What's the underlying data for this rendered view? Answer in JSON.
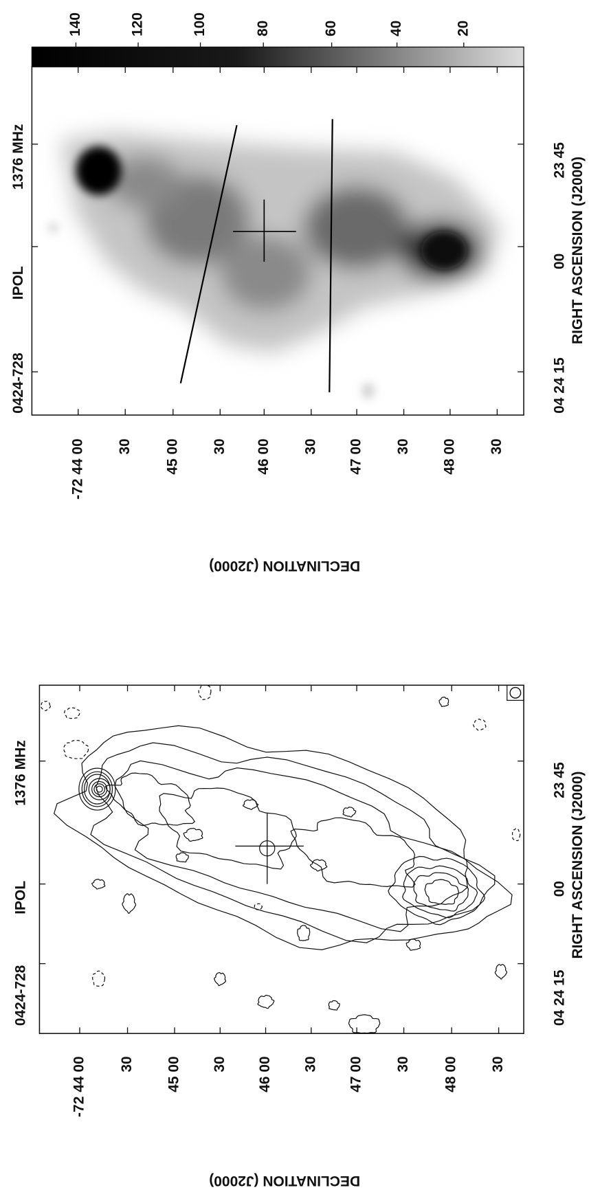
{
  "panels": [
    {
      "title": {
        "source": "0424-728",
        "stokes": "IPOL",
        "frequency": "1376 MHz"
      },
      "colorbar_ticks": [
        140,
        120,
        100,
        80,
        60,
        40,
        20
      ],
      "dec_ticks": [
        "-72 44 00",
        "30",
        "45 00",
        "30",
        "46 00",
        "30",
        "47 00",
        "30",
        "48 00",
        "30"
      ],
      "ra_ticks": [
        "04 24 15",
        "00",
        "23 45"
      ],
      "dec_label": "DECLINATION (J2000)",
      "ra_label": "RIGHT ASCENSION (J2000)"
    },
    {
      "title": {
        "source": "0424-728",
        "stokes": "IPOL",
        "frequency": "1376 MHz"
      },
      "dec_ticks": [
        "-72 44 00",
        "30",
        "45 00",
        "30",
        "46 00",
        "30",
        "47 00",
        "30",
        "48 00",
        "30"
      ],
      "ra_ticks": [
        "04 24 15",
        "00",
        "23 45"
      ],
      "dec_label": "DECLINATION (J2000)",
      "ra_label": "RIGHT ASCENSION (J2000)"
    }
  ]
}
